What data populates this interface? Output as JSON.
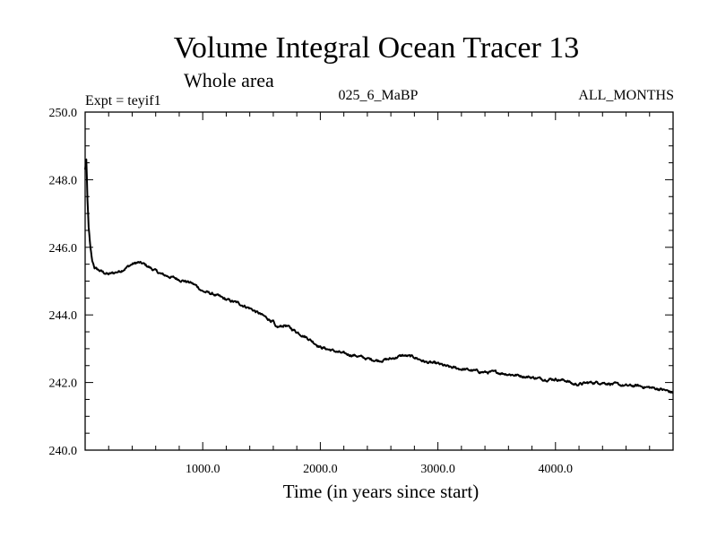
{
  "chart_data": {
    "type": "line",
    "title": "Volume Integral Ocean Tracer 13",
    "subtitle": "Whole area",
    "header_left": "Expt = teyif1",
    "header_center": "025_6_MaBP",
    "header_right": "ALL_MONTHS",
    "xlabel": "Time (in years since start)",
    "ylabel": "",
    "xlim": [
      0,
      5000
    ],
    "ylim": [
      240,
      250
    ],
    "xticks": [
      1000,
      2000,
      3000,
      4000
    ],
    "xtick_labels": [
      "1000.0",
      "2000.0",
      "3000.0",
      "4000.0"
    ],
    "yticks": [
      240,
      242,
      244,
      246,
      248,
      250
    ],
    "ytick_labels": [
      "240.0",
      "242.0",
      "244.0",
      "246.0",
      "248.0",
      "250.0"
    ],
    "grid": false,
    "series": [
      {
        "name": "teyif1",
        "color": "#000000",
        "x": [
          0,
          10,
          20,
          30,
          45,
          60,
          80,
          100,
          130,
          160,
          200,
          250,
          300,
          350,
          400,
          450,
          500,
          550,
          600,
          650,
          700,
          750,
          800,
          850,
          900,
          950,
          1000,
          1100,
          1200,
          1300,
          1400,
          1500,
          1600,
          1620,
          1700,
          1800,
          1900,
          2000,
          2100,
          2200,
          2300,
          2400,
          2500,
          2600,
          2700,
          2800,
          2900,
          3000,
          3100,
          3200,
          3300,
          3400,
          3500,
          3600,
          3700,
          3800,
          3900,
          4000,
          4100,
          4150,
          4200,
          4300,
          4400,
          4500,
          4600,
          4700,
          4800,
          4900,
          5000
        ],
        "values": [
          248.3,
          248.6,
          247.4,
          246.6,
          246.0,
          245.6,
          245.4,
          245.35,
          245.3,
          245.25,
          245.2,
          245.25,
          245.3,
          245.4,
          245.5,
          245.55,
          245.5,
          245.4,
          245.3,
          245.2,
          245.15,
          245.1,
          245.05,
          245.0,
          244.95,
          244.85,
          244.7,
          244.6,
          244.45,
          244.35,
          244.2,
          244.0,
          243.8,
          243.6,
          243.7,
          243.5,
          243.3,
          243.05,
          242.95,
          242.85,
          242.8,
          242.7,
          242.65,
          242.7,
          242.8,
          242.75,
          242.6,
          242.55,
          242.45,
          242.4,
          242.35,
          242.3,
          242.3,
          242.25,
          242.2,
          242.15,
          242.1,
          242.1,
          242.05,
          241.95,
          241.95,
          242.0,
          242.0,
          241.95,
          241.9,
          241.9,
          241.85,
          241.8,
          241.7
        ]
      }
    ]
  }
}
